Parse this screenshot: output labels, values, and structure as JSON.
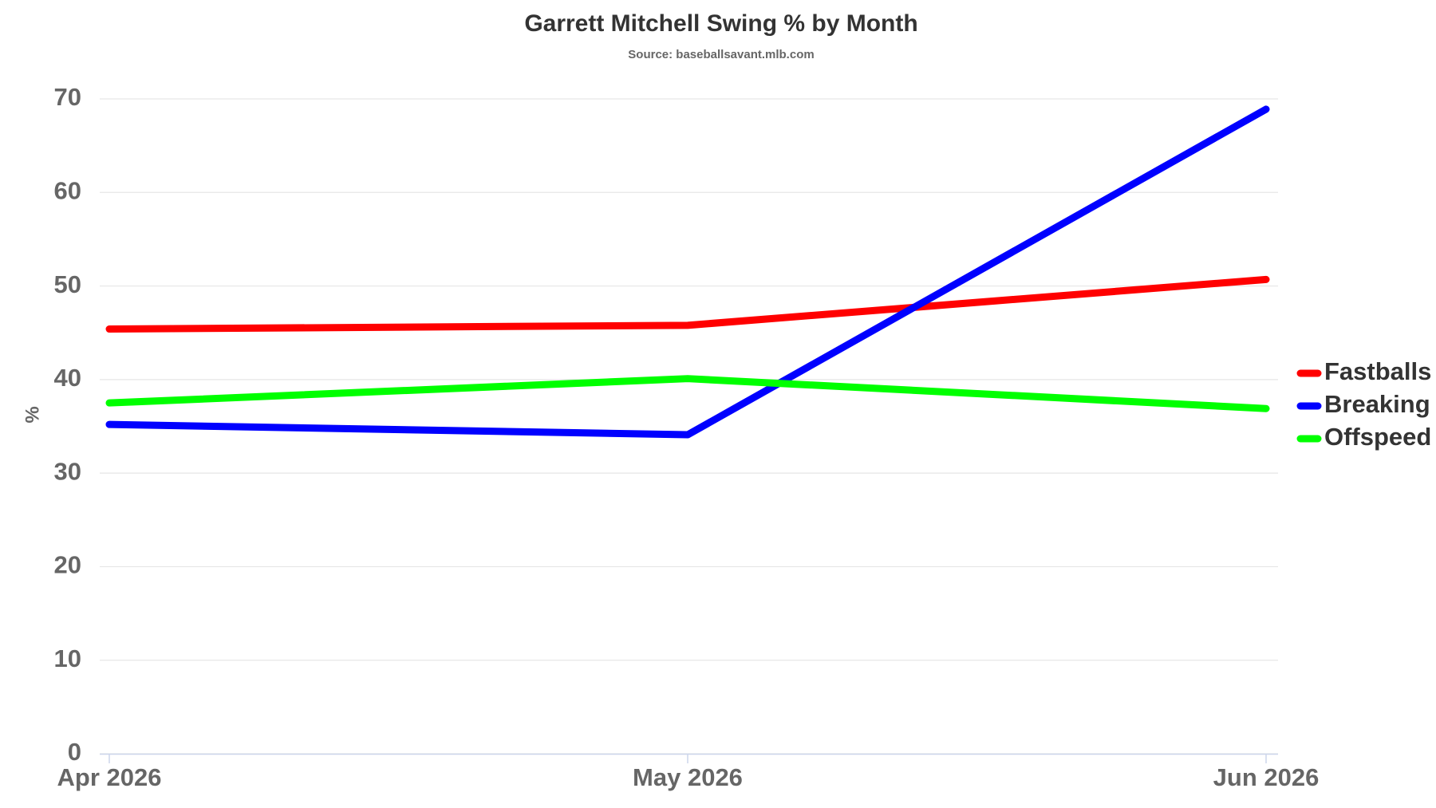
{
  "chart_data": {
    "type": "line",
    "title": "Garrett Mitchell Swing % by Month",
    "subtitle": "Source: baseballsavant.mlb.com",
    "y_label": "%",
    "categories": [
      "Apr 2026",
      "May 2026",
      "Jun 2026"
    ],
    "series": [
      {
        "name": "Fastballs",
        "color": "#ff0000",
        "values": [
          45.4,
          45.8,
          50.7
        ]
      },
      {
        "name": "Breaking",
        "color": "#0000ff",
        "values": [
          35.2,
          34.1,
          68.9
        ]
      },
      {
        "name": "Offspeed",
        "color": "#00ff00",
        "values": [
          37.5,
          40.1,
          36.9
        ]
      }
    ],
    "ylim": [
      0,
      70
    ],
    "yticks": [
      0,
      10,
      20,
      30,
      40,
      50,
      60,
      70
    ],
    "grid": true,
    "legend": "right"
  }
}
